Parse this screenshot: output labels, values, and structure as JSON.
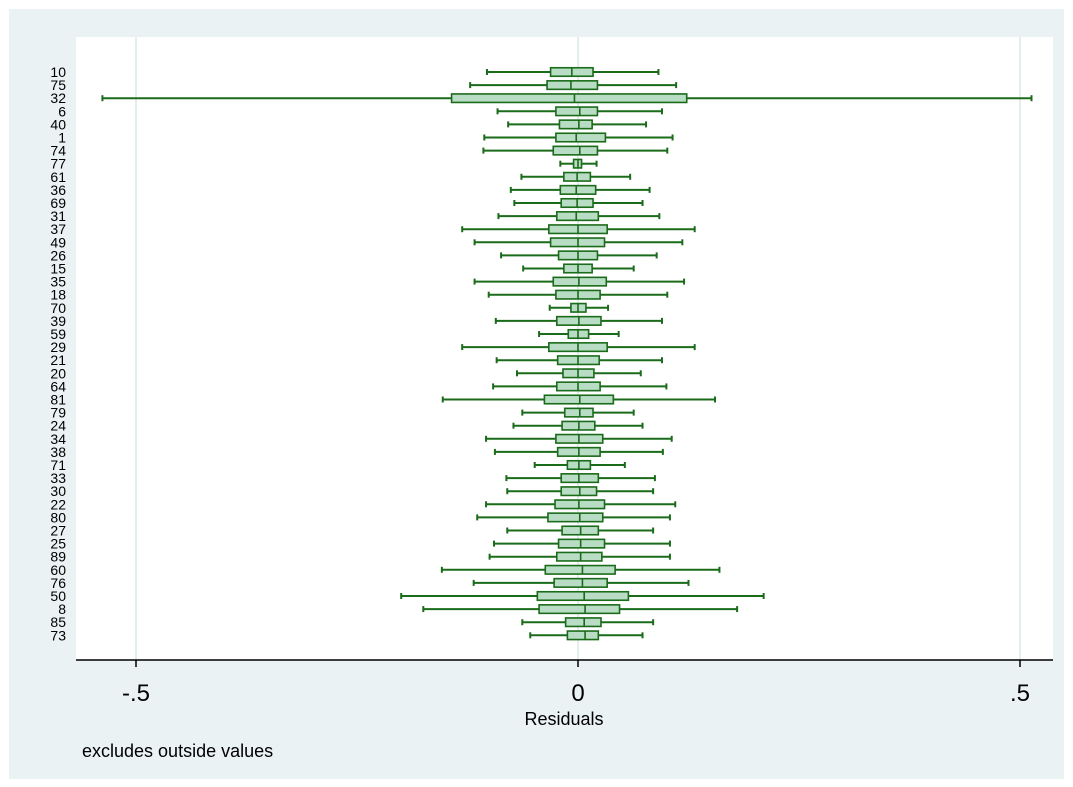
{
  "colors": {
    "outer_background": "#eaf2f3",
    "plot_background": "#ffffff",
    "box_fill": "#b9dcc4",
    "box_stroke": "#1a6b1a",
    "grid": "#dbe9ea"
  },
  "note": "excludes outside values",
  "chart_data": {
    "type": "boxplot",
    "orientation": "horizontal",
    "xlabel": "Residuals",
    "xlim": [
      -0.56,
      0.52
    ],
    "x_ticks": [
      -0.5,
      0,
      0.5
    ],
    "x_tick_labels": [
      "-.5",
      "0",
      ".5"
    ],
    "grid": "vertical lines at ticks",
    "categories": [
      "10",
      "75",
      "32",
      "6",
      "40",
      "1",
      "74",
      "77",
      "61",
      "36",
      "69",
      "31",
      "37",
      "49",
      "26",
      "15",
      "35",
      "18",
      "70",
      "39",
      "59",
      "29",
      "21",
      "20",
      "64",
      "81",
      "79",
      "24",
      "34",
      "38",
      "71",
      "33",
      "30",
      "22",
      "80",
      "27",
      "25",
      "89",
      "60",
      "76",
      "50",
      "8",
      "85",
      "73"
    ],
    "boxes": [
      {
        "min": -0.103,
        "q1": -0.031,
        "median": -0.007,
        "q3": 0.017,
        "max": 0.091
      },
      {
        "min": -0.122,
        "q1": -0.035,
        "median": -0.008,
        "q3": 0.022,
        "max": 0.111
      },
      {
        "min": -0.538,
        "q1": -0.143,
        "median": -0.004,
        "q3": 0.123,
        "max": 0.513
      },
      {
        "min": -0.091,
        "q1": -0.025,
        "median": 0.002,
        "q3": 0.022,
        "max": 0.095
      },
      {
        "min": -0.079,
        "q1": -0.021,
        "median": 0.001,
        "q3": 0.016,
        "max": 0.077
      },
      {
        "min": -0.106,
        "q1": -0.025,
        "median": -0.002,
        "q3": 0.031,
        "max": 0.107
      },
      {
        "min": -0.107,
        "q1": -0.028,
        "median": 0.002,
        "q3": 0.022,
        "max": 0.101
      },
      {
        "min": -0.02,
        "q1": -0.005,
        "median": 0.0,
        "q3": 0.004,
        "max": 0.021
      },
      {
        "min": -0.064,
        "q1": -0.016,
        "median": -0.001,
        "q3": 0.014,
        "max": 0.059
      },
      {
        "min": -0.076,
        "q1": -0.02,
        "median": -0.002,
        "q3": 0.02,
        "max": 0.081
      },
      {
        "min": -0.072,
        "q1": -0.019,
        "median": -0.001,
        "q3": 0.017,
        "max": 0.073
      },
      {
        "min": -0.09,
        "q1": -0.024,
        "median": -0.002,
        "q3": 0.023,
        "max": 0.092
      },
      {
        "min": -0.131,
        "q1": -0.033,
        "median": 0.0,
        "q3": 0.033,
        "max": 0.132
      },
      {
        "min": -0.117,
        "q1": -0.031,
        "median": 0.0,
        "q3": 0.03,
        "max": 0.118
      },
      {
        "min": -0.087,
        "q1": -0.022,
        "median": 0.0,
        "q3": 0.022,
        "max": 0.089
      },
      {
        "min": -0.062,
        "q1": -0.016,
        "median": 0.0,
        "q3": 0.016,
        "max": 0.063
      },
      {
        "min": -0.117,
        "q1": -0.028,
        "median": 0.001,
        "q3": 0.032,
        "max": 0.12
      },
      {
        "min": -0.101,
        "q1": -0.025,
        "median": 0.0,
        "q3": 0.025,
        "max": 0.101
      },
      {
        "min": -0.032,
        "q1": -0.008,
        "median": 0.0,
        "q3": 0.009,
        "max": 0.034
      },
      {
        "min": -0.093,
        "q1": -0.024,
        "median": 0.001,
        "q3": 0.026,
        "max": 0.095
      },
      {
        "min": -0.044,
        "q1": -0.011,
        "median": 0.0,
        "q3": 0.012,
        "max": 0.046
      },
      {
        "min": -0.131,
        "q1": -0.033,
        "median": 0.0,
        "q3": 0.033,
        "max": 0.132
      },
      {
        "min": -0.092,
        "q1": -0.023,
        "median": 0.0,
        "q3": 0.024,
        "max": 0.095
      },
      {
        "min": -0.069,
        "q1": -0.017,
        "median": 0.0,
        "q3": 0.018,
        "max": 0.071
      },
      {
        "min": -0.096,
        "q1": -0.024,
        "median": 0.0,
        "q3": 0.025,
        "max": 0.1
      },
      {
        "min": -0.153,
        "q1": -0.038,
        "median": 0.002,
        "q3": 0.04,
        "max": 0.155
      },
      {
        "min": -0.063,
        "q1": -0.015,
        "median": 0.002,
        "q3": 0.017,
        "max": 0.063
      },
      {
        "min": -0.073,
        "q1": -0.018,
        "median": 0.001,
        "q3": 0.019,
        "max": 0.073
      },
      {
        "min": -0.104,
        "q1": -0.025,
        "median": 0.001,
        "q3": 0.028,
        "max": 0.106
      },
      {
        "min": -0.094,
        "q1": -0.023,
        "median": 0.001,
        "q3": 0.025,
        "max": 0.096
      },
      {
        "min": -0.049,
        "q1": -0.012,
        "median": 0.001,
        "q3": 0.014,
        "max": 0.053
      },
      {
        "min": -0.081,
        "q1": -0.019,
        "median": 0.001,
        "q3": 0.023,
        "max": 0.087
      },
      {
        "min": -0.08,
        "q1": -0.019,
        "median": 0.002,
        "q3": 0.021,
        "max": 0.085
      },
      {
        "min": -0.104,
        "q1": -0.026,
        "median": 0.001,
        "q3": 0.03,
        "max": 0.11
      },
      {
        "min": -0.114,
        "q1": -0.034,
        "median": 0.002,
        "q3": 0.028,
        "max": 0.104
      },
      {
        "min": -0.08,
        "q1": -0.018,
        "median": 0.003,
        "q3": 0.023,
        "max": 0.085
      },
      {
        "min": -0.095,
        "q1": -0.022,
        "median": 0.003,
        "q3": 0.03,
        "max": 0.104
      },
      {
        "min": -0.1,
        "q1": -0.024,
        "median": 0.003,
        "q3": 0.027,
        "max": 0.104
      },
      {
        "min": -0.154,
        "q1": -0.037,
        "median": 0.005,
        "q3": 0.042,
        "max": 0.16
      },
      {
        "min": -0.118,
        "q1": -0.027,
        "median": 0.005,
        "q3": 0.033,
        "max": 0.125
      },
      {
        "min": -0.2,
        "q1": -0.046,
        "median": 0.007,
        "q3": 0.057,
        "max": 0.21
      },
      {
        "min": -0.175,
        "q1": -0.044,
        "median": 0.008,
        "q3": 0.047,
        "max": 0.18
      },
      {
        "min": -0.063,
        "q1": -0.014,
        "median": 0.007,
        "q3": 0.026,
        "max": 0.085
      },
      {
        "min": -0.054,
        "q1": -0.012,
        "median": 0.008,
        "q3": 0.023,
        "max": 0.073
      }
    ]
  }
}
